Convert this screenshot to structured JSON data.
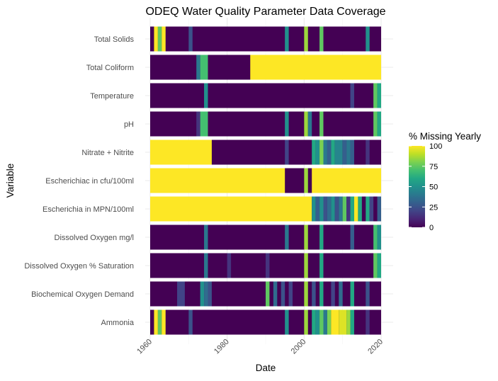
{
  "chart_data": {
    "type": "heatmap",
    "title": "ODEQ Water Quality Parameter Data Coverage",
    "xlabel": "Date",
    "ylabel": "Variable",
    "x_ticks": [
      1960,
      1980,
      2000,
      2020
    ],
    "xlim": [
      1960,
      2020
    ],
    "legend": {
      "title": "% Missing Yearly",
      "ticks": [
        0,
        25,
        50,
        75,
        100
      ],
      "range": [
        0,
        100
      ],
      "position": "right"
    },
    "colormap": [
      "#440154",
      "#482475",
      "#414487",
      "#355f8d",
      "#2a788e",
      "#21918c",
      "#22a884",
      "#44bf70",
      "#7ad151",
      "#bddf26",
      "#fde725"
    ],
    "background_value": 0,
    "rows": [
      {
        "name": "Total Solids",
        "cells": [
          [
            1961,
            1962,
            100
          ],
          [
            1962,
            1963,
            75
          ],
          [
            1963,
            1964,
            100
          ],
          [
            1970,
            1971,
            25
          ],
          [
            1995,
            1996,
            50
          ],
          [
            2000,
            2001,
            85
          ],
          [
            2004,
            2005,
            75
          ],
          [
            2016,
            2017,
            50
          ]
        ]
      },
      {
        "name": "Total Coliform",
        "cells": [
          [
            1972,
            1973,
            40
          ],
          [
            1973,
            1975,
            70
          ],
          [
            1986,
            2020,
            100
          ]
        ]
      },
      {
        "name": "Temperature",
        "cells": [
          [
            1974,
            1975,
            50
          ],
          [
            2012,
            2013,
            20
          ],
          [
            2018,
            2019,
            75
          ],
          [
            2019,
            2020,
            60
          ]
        ]
      },
      {
        "name": "pH",
        "cells": [
          [
            1972,
            1973,
            15
          ],
          [
            1973,
            1975,
            70
          ],
          [
            1995,
            1996,
            50
          ],
          [
            2000,
            2001,
            85
          ],
          [
            2001,
            2002,
            40
          ],
          [
            2004,
            2005,
            75
          ],
          [
            2018,
            2019,
            75
          ],
          [
            2019,
            2020,
            60
          ]
        ]
      },
      {
        "name": "Nitrate + Nitrite",
        "cells": [
          [
            1960,
            1976,
            100
          ],
          [
            1995,
            1996,
            20
          ],
          [
            2002,
            2003,
            60
          ],
          [
            2003,
            2004,
            50
          ],
          [
            2004,
            2005,
            80
          ],
          [
            2005,
            2006,
            40
          ],
          [
            2006,
            2007,
            30
          ],
          [
            2007,
            2008,
            60
          ],
          [
            2008,
            2010,
            45
          ],
          [
            2010,
            2011,
            30
          ],
          [
            2011,
            2012,
            40
          ],
          [
            2012,
            2013,
            30
          ],
          [
            2016,
            2017,
            15
          ]
        ]
      },
      {
        "name": "Escherichiac in cfu/100ml",
        "cells": [
          [
            1960,
            1995,
            100
          ],
          [
            2000,
            2001,
            85
          ],
          [
            2002,
            2020,
            100
          ]
        ]
      },
      {
        "name": "Escherichia in MPN/100ml",
        "cells": [
          [
            1960,
            2002,
            100
          ],
          [
            2002,
            2003,
            50
          ],
          [
            2003,
            2004,
            30
          ],
          [
            2004,
            2005,
            50
          ],
          [
            2005,
            2006,
            25
          ],
          [
            2006,
            2007,
            35
          ],
          [
            2007,
            2008,
            50
          ],
          [
            2008,
            2009,
            25
          ],
          [
            2009,
            2010,
            40
          ],
          [
            2010,
            2011,
            75
          ],
          [
            2011,
            2012,
            15
          ],
          [
            2012,
            2013,
            60
          ],
          [
            2013,
            2014,
            100
          ],
          [
            2014,
            2015,
            60
          ],
          [
            2016,
            2017,
            60
          ],
          [
            2017,
            2018,
            20
          ],
          [
            2019,
            2020,
            30
          ]
        ]
      },
      {
        "name": "Dissolved Oxygen mg/l",
        "cells": [
          [
            1974,
            1975,
            40
          ],
          [
            1995,
            1996,
            40
          ],
          [
            2000,
            2001,
            85
          ],
          [
            2004,
            2005,
            60
          ],
          [
            2012,
            2013,
            30
          ],
          [
            2018,
            2019,
            70
          ],
          [
            2019,
            2020,
            50
          ]
        ]
      },
      {
        "name": "Dissolved Oxygen % Saturation",
        "cells": [
          [
            1974,
            1975,
            40
          ],
          [
            1980,
            1981,
            15
          ],
          [
            1990,
            1991,
            15
          ],
          [
            2000,
            2001,
            85
          ],
          [
            2004,
            2005,
            60
          ],
          [
            2018,
            2019,
            75
          ],
          [
            2019,
            2020,
            60
          ]
        ]
      },
      {
        "name": "Biochemical Oxygen Demand",
        "cells": [
          [
            1967,
            1969,
            20
          ],
          [
            1973,
            1974,
            50
          ],
          [
            1974,
            1975,
            35
          ],
          [
            1975,
            1976,
            25
          ],
          [
            1990,
            1991,
            75
          ],
          [
            1992,
            1993,
            35
          ],
          [
            1994,
            1995,
            25
          ],
          [
            1996,
            1997,
            20
          ],
          [
            2000,
            2001,
            85
          ],
          [
            2002,
            2003,
            25
          ],
          [
            2004,
            2005,
            60
          ],
          [
            2007,
            2008,
            20
          ],
          [
            2009,
            2010,
            35
          ],
          [
            2012,
            2013,
            60
          ],
          [
            2016,
            2017,
            25
          ]
        ]
      },
      {
        "name": "Ammonia",
        "cells": [
          [
            1961,
            1962,
            100
          ],
          [
            1962,
            1963,
            75
          ],
          [
            1963,
            1964,
            100
          ],
          [
            1970,
            1971,
            25
          ],
          [
            1995,
            1996,
            50
          ],
          [
            2000,
            2001,
            85
          ],
          [
            2002,
            2003,
            60
          ],
          [
            2003,
            2004,
            50
          ],
          [
            2004,
            2005,
            75
          ],
          [
            2005,
            2006,
            40
          ],
          [
            2006,
            2007,
            80
          ],
          [
            2007,
            2009,
            100
          ],
          [
            2009,
            2011,
            95
          ],
          [
            2011,
            2012,
            85
          ],
          [
            2012,
            2013,
            60
          ],
          [
            2016,
            2017,
            15
          ]
        ]
      }
    ]
  }
}
